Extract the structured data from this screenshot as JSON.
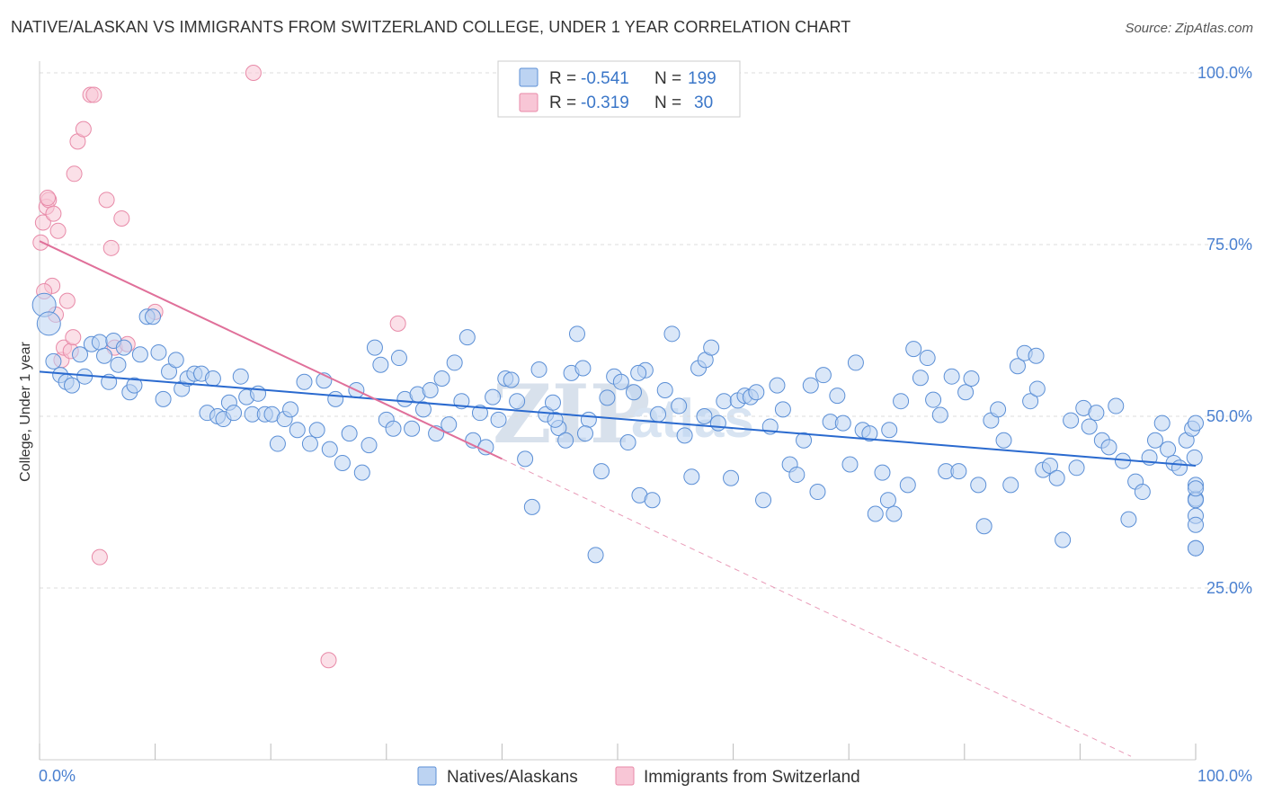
{
  "title": "NATIVE/ALASKAN VS IMMIGRANTS FROM SWITZERLAND COLLEGE, UNDER 1 YEAR CORRELATION CHART",
  "source": "Source: ZipAtlas.com",
  "watermark": {
    "zip": "ZIP",
    "atlas": "atlas"
  },
  "colors": {
    "blue_fill": "#bcd3f2",
    "blue_stroke": "#5b8fd6",
    "blue_line": "#2a6acf",
    "pink_fill": "#f8c6d6",
    "pink_stroke": "#e88aa8",
    "pink_line": "#e0709a",
    "grid": "#dddddd"
  },
  "stats": [
    {
      "r_label": "R =",
      "r_value": "-0.541",
      "n_label": "N =",
      "n_value": "199",
      "series": "blue"
    },
    {
      "r_label": "R =",
      "r_value": "-0.319",
      "n_label": "N =",
      "n_value": "30",
      "series": "pink"
    }
  ],
  "chart_data": {
    "type": "scatter",
    "title": "NATIVE/ALASKAN VS IMMIGRANTS FROM SWITZERLAND COLLEGE, UNDER 1 YEAR CORRELATION CHART",
    "xlabel": "",
    "ylabel": "College, Under 1 year",
    "xlim": [
      0,
      100
    ],
    "ylim": [
      0,
      103
    ],
    "x_tick_labels": [
      "0.0%",
      "100.0%"
    ],
    "y_ticks": [
      25,
      50,
      75,
      100
    ],
    "y_tick_labels": [
      "25.0%",
      "50.0%",
      "75.0%",
      "100.0%"
    ],
    "grid": true,
    "legend_position": "bottom",
    "series": [
      {
        "name": "Natives/Alaskans",
        "color": "#5b8fd6",
        "trend": {
          "x": [
            0,
            100
          ],
          "y": [
            56.5,
            42.8
          ]
        },
        "points": [
          [
            0.4,
            66.2
          ],
          [
            0.8,
            63.5
          ],
          [
            1.2,
            58
          ],
          [
            1.8,
            56
          ],
          [
            2.3,
            55
          ],
          [
            2.8,
            54.5
          ],
          [
            3.5,
            59
          ],
          [
            3.9,
            55.8
          ],
          [
            4.5,
            60.5
          ],
          [
            5.2,
            60.8
          ],
          [
            5.6,
            58.8
          ],
          [
            6,
            55
          ],
          [
            6.4,
            61
          ],
          [
            6.8,
            57.5
          ],
          [
            7.3,
            60
          ],
          [
            7.8,
            53.5
          ],
          [
            8.2,
            54.5
          ],
          [
            8.7,
            59
          ],
          [
            9.3,
            64.5
          ],
          [
            9.8,
            64.5
          ],
          [
            10.3,
            59.3
          ],
          [
            10.7,
            52.5
          ],
          [
            11.2,
            56.5
          ],
          [
            11.8,
            58.2
          ],
          [
            12.3,
            54
          ],
          [
            12.8,
            55.5
          ],
          [
            13.4,
            56.2
          ],
          [
            14,
            56.2
          ],
          [
            14.5,
            50.5
          ],
          [
            15,
            55.5
          ],
          [
            15.4,
            50
          ],
          [
            15.9,
            49.6
          ],
          [
            16.4,
            52
          ],
          [
            16.8,
            50.5
          ],
          [
            17.4,
            55.8
          ],
          [
            17.9,
            52.8
          ],
          [
            18.4,
            50.3
          ],
          [
            18.9,
            53.3
          ],
          [
            19.5,
            50.3
          ],
          [
            20.1,
            50.3
          ],
          [
            20.6,
            46
          ],
          [
            21.2,
            49.6
          ],
          [
            21.7,
            51
          ],
          [
            22.3,
            48
          ],
          [
            22.9,
            55
          ],
          [
            23.4,
            46
          ],
          [
            24,
            48
          ],
          [
            24.6,
            55.2
          ],
          [
            25.1,
            45.2
          ],
          [
            25.6,
            52.5
          ],
          [
            26.2,
            43.2
          ],
          [
            26.8,
            47.5
          ],
          [
            27.4,
            53.8
          ],
          [
            27.9,
            41.8
          ],
          [
            28.5,
            45.8
          ],
          [
            29,
            60
          ],
          [
            29.5,
            57.5
          ],
          [
            30,
            49.5
          ],
          [
            30.6,
            48.2
          ],
          [
            31.1,
            58.5
          ],
          [
            31.6,
            52.5
          ],
          [
            32.2,
            48.2
          ],
          [
            32.7,
            53.2
          ],
          [
            33.2,
            51
          ],
          [
            33.8,
            53.8
          ],
          [
            34.3,
            47.5
          ],
          [
            34.8,
            55.5
          ],
          [
            35.4,
            48.8
          ],
          [
            35.9,
            57.8
          ],
          [
            36.5,
            52.2
          ],
          [
            37,
            61.5
          ],
          [
            37.5,
            46.5
          ],
          [
            38.1,
            50.5
          ],
          [
            38.6,
            45.5
          ],
          [
            39.2,
            52.8
          ],
          [
            39.7,
            49.5
          ],
          [
            40.3,
            55.5
          ],
          [
            40.8,
            55.3
          ],
          [
            41.3,
            52.2
          ],
          [
            42,
            43.8
          ],
          [
            42.6,
            36.8
          ],
          [
            43.2,
            56.8
          ],
          [
            43.8,
            50.3
          ],
          [
            44.4,
            52
          ],
          [
            44.9,
            48.3
          ],
          [
            45.5,
            46.5
          ],
          [
            46,
            56.3
          ],
          [
            46.5,
            62
          ],
          [
            47,
            57
          ],
          [
            47.5,
            49.5
          ],
          [
            48.1,
            29.8
          ],
          [
            48.6,
            42
          ],
          [
            49.1,
            52.7
          ],
          [
            49.7,
            55.8
          ],
          [
            50.3,
            55
          ],
          [
            50.9,
            46.2
          ],
          [
            51.4,
            53.5
          ],
          [
            51.9,
            38.5
          ],
          [
            52.4,
            56.7
          ],
          [
            53,
            37.8
          ],
          [
            53.5,
            50.3
          ],
          [
            54.1,
            53.8
          ],
          [
            54.7,
            62
          ],
          [
            55.3,
            51.5
          ],
          [
            55.8,
            47.2
          ],
          [
            56.4,
            41.2
          ],
          [
            57,
            57
          ],
          [
            57.6,
            58.2
          ],
          [
            58.1,
            60
          ],
          [
            58.7,
            49
          ],
          [
            59.2,
            52.2
          ],
          [
            59.8,
            41
          ],
          [
            60.4,
            52.3
          ],
          [
            61,
            53
          ],
          [
            61.5,
            52.8
          ],
          [
            62,
            53.5
          ],
          [
            62.6,
            37.8
          ],
          [
            63.2,
            48.5
          ],
          [
            63.8,
            54.5
          ],
          [
            64.3,
            51
          ],
          [
            64.9,
            43
          ],
          [
            65.5,
            41.5
          ],
          [
            66.1,
            46.5
          ],
          [
            66.7,
            54.5
          ],
          [
            67.3,
            39
          ],
          [
            67.8,
            56
          ],
          [
            68.4,
            49.2
          ],
          [
            69,
            53
          ],
          [
            69.5,
            49
          ],
          [
            70.1,
            43
          ],
          [
            70.6,
            57.8
          ],
          [
            71.2,
            48
          ],
          [
            71.8,
            47.5
          ],
          [
            72.3,
            35.8
          ],
          [
            72.9,
            41.8
          ],
          [
            73.4,
            37.8
          ],
          [
            73.9,
            35.8
          ],
          [
            74.5,
            52.2
          ],
          [
            75.1,
            40
          ],
          [
            75.6,
            59.8
          ],
          [
            76.2,
            55.6
          ],
          [
            76.8,
            58.5
          ],
          [
            77.3,
            52.4
          ],
          [
            77.9,
            50.2
          ],
          [
            78.4,
            42
          ],
          [
            78.9,
            55.8
          ],
          [
            79.5,
            42
          ],
          [
            80.1,
            53.5
          ],
          [
            80.6,
            55.5
          ],
          [
            81.2,
            40
          ],
          [
            81.7,
            34
          ],
          [
            82.3,
            49.4
          ],
          [
            82.9,
            51
          ],
          [
            83.4,
            46.5
          ],
          [
            84,
            40
          ],
          [
            84.6,
            57.3
          ],
          [
            85.2,
            59.2
          ],
          [
            85.7,
            52.2
          ],
          [
            86.3,
            54
          ],
          [
            86.8,
            42.2
          ],
          [
            87.4,
            42.8
          ],
          [
            88,
            41
          ],
          [
            88.5,
            32
          ],
          [
            89.2,
            49.4
          ],
          [
            89.7,
            42.5
          ],
          [
            90.3,
            51.2
          ],
          [
            90.8,
            48.5
          ],
          [
            91.4,
            50.5
          ],
          [
            91.9,
            46.5
          ],
          [
            92.5,
            45.5
          ],
          [
            93.1,
            51.5
          ],
          [
            93.7,
            43.5
          ],
          [
            94.2,
            35
          ],
          [
            94.8,
            40.5
          ],
          [
            95.4,
            39
          ],
          [
            96,
            44
          ],
          [
            96.5,
            46.5
          ],
          [
            97.1,
            49
          ],
          [
            97.6,
            45.2
          ],
          [
            98.1,
            43.2
          ],
          [
            98.6,
            42.5
          ],
          [
            99.2,
            46.5
          ],
          [
            99.7,
            48.2
          ],
          [
            99.9,
            44
          ],
          [
            100,
            49
          ],
          [
            100,
            38
          ],
          [
            100,
            40
          ],
          [
            100,
            37.8
          ],
          [
            100,
            35.5
          ],
          [
            100,
            30.8
          ],
          [
            100,
            34.2
          ],
          [
            100,
            39.5
          ],
          [
            100,
            30.8
          ],
          [
            86.2,
            58.8
          ],
          [
            73.5,
            48
          ],
          [
            47.2,
            47.5
          ],
          [
            44.6,
            49.5
          ],
          [
            57.5,
            50
          ],
          [
            51.8,
            56.3
          ]
        ]
      },
      {
        "name": "Immigrants from Switzerland",
        "color": "#e88aa8",
        "trend": {
          "x": [
            0,
            40
          ],
          "y": [
            75.5,
            43.8
          ]
        },
        "trend_dashed": {
          "x": [
            40,
            94.4
          ],
          "y": [
            43.8,
            0.5
          ]
        },
        "points": [
          [
            0.1,
            75.3
          ],
          [
            0.3,
            78.2
          ],
          [
            0.6,
            80.5
          ],
          [
            0.8,
            81.5
          ],
          [
            1.1,
            69
          ],
          [
            1.4,
            64.8
          ],
          [
            1.6,
            77
          ],
          [
            1.9,
            58.2
          ],
          [
            2.1,
            60
          ],
          [
            2.4,
            66.8
          ],
          [
            2.7,
            59.5
          ],
          [
            3,
            85.3
          ],
          [
            3.3,
            90
          ],
          [
            3.8,
            91.8
          ],
          [
            4.4,
            96.8
          ],
          [
            4.7,
            96.8
          ],
          [
            5.2,
            29.5
          ],
          [
            5.8,
            81.5
          ],
          [
            6.2,
            74.5
          ],
          [
            6.5,
            60
          ],
          [
            7.1,
            78.8
          ],
          [
            7.6,
            60.5
          ],
          [
            10,
            65.2
          ],
          [
            18.5,
            100
          ],
          [
            25,
            14.5
          ],
          [
            31,
            63.5
          ],
          [
            0.7,
            81.8
          ],
          [
            1.2,
            79.5
          ],
          [
            0.4,
            68.2
          ],
          [
            2.9,
            61.5
          ]
        ]
      }
    ]
  },
  "legend": [
    {
      "label": "Natives/Alaskans",
      "series": "blue"
    },
    {
      "label": "Immigrants from Switzerland",
      "series": "pink"
    }
  ]
}
